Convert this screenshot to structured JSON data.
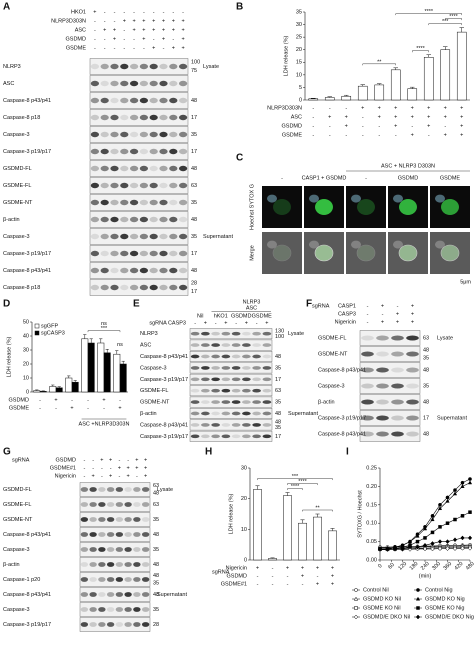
{
  "panel_labels": [
    "A",
    "B",
    "C",
    "D",
    "E",
    "F",
    "G",
    "H",
    "I"
  ],
  "blots": [
    {
      "conditions": [
        {
          "name": "HKO1",
          "signs": [
            "+",
            "-",
            "-",
            "-",
            "-",
            "-",
            "-",
            "-",
            "-",
            "-"
          ]
        },
        {
          "name": "NLRP3D303N",
          "signs": [
            "-",
            "-",
            "-",
            "+",
            "+",
            "+",
            "+",
            "+",
            "+",
            "+"
          ]
        },
        {
          "name": "ASC",
          "signs": [
            "-",
            "+",
            "+",
            "-",
            "+",
            "+",
            "+",
            "+",
            "+",
            "+"
          ]
        },
        {
          "name": "GSDMD",
          "signs": [
            "-",
            "-",
            "+",
            "-",
            "-",
            "+",
            "-",
            "+",
            "-",
            "+"
          ]
        },
        {
          "name": "GSDME",
          "signs": [
            "-",
            "-",
            "-",
            "-",
            "-",
            "-",
            "+",
            "-",
            "+",
            "+"
          ]
        }
      ],
      "bands": [
        {
          "name": "NLRP3",
          "markers": [
            "100",
            "75"
          ]
        },
        {
          "name": "ASC",
          "markers": []
        },
        {
          "name": "Caspase-8 p43/p41",
          "markers": [
            "48"
          ]
        },
        {
          "name": "Caspase-8 p18",
          "markers": [
            "17"
          ]
        },
        {
          "name": "Caspase-3",
          "markers": [
            "35"
          ]
        },
        {
          "name": "Caspase-3 p19/p17",
          "markers": [
            "17"
          ]
        },
        {
          "name": "GSDMD-FL",
          "markers": [
            "48"
          ]
        },
        {
          "name": "GSDME-FL",
          "markers": [
            "63"
          ]
        },
        {
          "name": "GSDME-NT",
          "markers": [
            "35"
          ]
        },
        {
          "name": "β-actin",
          "markers": [
            "48"
          ]
        },
        {
          "name": "Caspase-3",
          "markers": [
            "35"
          ]
        },
        {
          "name": "Caspase-3 p19/p17",
          "markers": [
            "17"
          ]
        },
        {
          "name": "Caspase-8 p43/p41",
          "markers": [
            "48"
          ]
        },
        {
          "name": "Caspase-8 p18",
          "markers": [
            "28",
            "17"
          ]
        }
      ],
      "groups": [
        "Lysate",
        "Supernatant"
      ]
    },
    {
      "header": {
        "top": "NLRP3",
        "sub": "ASC",
        "columns": [
          "Nil",
          "hKO1",
          "GSDMD",
          "GSDME"
        ]
      },
      "conditions": [
        {
          "name": "sgRNA CASP3",
          "signs": [
            "-",
            "+",
            "-",
            "+",
            "-",
            "+",
            "-",
            "+"
          ]
        }
      ],
      "bands": [
        {
          "name": "NLRP3",
          "markers": [
            "130",
            "100"
          ]
        },
        {
          "name": "ASC",
          "markers": []
        },
        {
          "name": "Caspase-8 p43/p41",
          "markers": [
            "48"
          ]
        },
        {
          "name": "Caspase-3",
          "markers": [
            "35"
          ]
        },
        {
          "name": "Caspase-3 p19/p17",
          "markers": [
            "17"
          ]
        },
        {
          "name": "GSDME-FL",
          "markers": [
            "63"
          ]
        },
        {
          "name": "GSDME-NT",
          "markers": [
            "35"
          ]
        },
        {
          "name": "β-actin",
          "markers": [
            "48"
          ]
        },
        {
          "name": "Caspase-8 p43/p41",
          "markers": [
            "48",
            "35"
          ]
        },
        {
          "name": "Caspase-3 p19/p17",
          "markers": [
            "17"
          ]
        }
      ],
      "groups": [
        "Lysate",
        "Supernatant"
      ]
    },
    {
      "conditions_title": "sgRNA",
      "conditions": [
        {
          "name": "CASP1",
          "signs": [
            "-",
            "+",
            "-",
            "+"
          ]
        },
        {
          "name": "CASP3",
          "signs": [
            "-",
            "-",
            "+",
            "+"
          ]
        },
        {
          "name": "Nigericin",
          "signs": [
            "-",
            "+",
            "+",
            "+"
          ]
        }
      ],
      "bands": [
        {
          "name": "GSDME-FL",
          "markers": [
            "63"
          ]
        },
        {
          "name": "GSDME-NT",
          "markers": [
            "48",
            "35"
          ]
        },
        {
          "name": "Caspase-8 p43/p41",
          "markers": [
            "48"
          ]
        },
        {
          "name": "Caspase-3",
          "markers": [
            "35"
          ]
        },
        {
          "name": "β-actin",
          "markers": [
            "48"
          ]
        },
        {
          "name": "Caspase-3 p19/p17",
          "markers": [
            "17"
          ]
        },
        {
          "name": "Caspase-8 p43/p41",
          "markers": [
            "48"
          ]
        }
      ],
      "groups": [
        "Lysate",
        "Supernatant"
      ]
    },
    {
      "conditions_title": "sgRNA",
      "conditions": [
        {
          "name": "GSDMD",
          "signs": [
            "-",
            "-",
            "+",
            "+",
            "-",
            "-",
            "+",
            "+"
          ]
        },
        {
          "name": "GSDME#1",
          "signs": [
            "-",
            "-",
            "-",
            "-",
            "+",
            "+",
            "+",
            "+"
          ]
        },
        {
          "name": "Nigericin",
          "signs": [
            "-",
            "+",
            "-",
            "+",
            "-",
            "+",
            "-",
            "+"
          ]
        }
      ],
      "bands": [
        {
          "name": "GSDMD-FL",
          "markers": [
            "63",
            "48"
          ]
        },
        {
          "name": "GSDME-FL",
          "markers": [
            "63"
          ]
        },
        {
          "name": "GSDME-NT",
          "markers": [
            "35"
          ]
        },
        {
          "name": "Caspase-8 p43/p41",
          "markers": [
            "48"
          ]
        },
        {
          "name": "Caspase-3",
          "markers": [
            "35"
          ]
        },
        {
          "name": "β-actin",
          "markers": [
            "48"
          ]
        },
        {
          "name": "Caspase-1 p20",
          "markers": [
            "48",
            "35"
          ]
        },
        {
          "name": "Caspase-8 p43/p41",
          "markers": [
            "48"
          ]
        },
        {
          "name": "Caspase-3",
          "markers": [
            "35"
          ]
        },
        {
          "name": "Caspase-3 p19/p17",
          "markers": [
            "28"
          ]
        }
      ],
      "groups": [
        "Lysate",
        "Supernatant"
      ]
    }
  ],
  "microscopy": {
    "group_header": "ASC + NLRP3 D303N",
    "col_headers": [
      "-",
      "CASP1 + GSDMD",
      "-",
      "GSDMD",
      "GSDME"
    ],
    "row_labels": [
      "Hoechst SYTOX G",
      "Merge"
    ],
    "scale": "5μm"
  },
  "chart_data": [
    {
      "type": "bar",
      "y_label": "LDH release (%)",
      "ylim": [
        0,
        35
      ],
      "yticks": [
        0,
        5,
        10,
        15,
        20,
        25,
        30,
        35
      ],
      "values": [
        0.5,
        1,
        1.5,
        5.5,
        6,
        12,
        4.5,
        17,
        20,
        27
      ],
      "errors": [
        0.2,
        0.3,
        0.4,
        0.6,
        0.5,
        0.8,
        0.6,
        1,
        1.2,
        1.8
      ],
      "color": "#ffffff",
      "conditions": [
        {
          "name": "NLRP3D303N",
          "signs": [
            "-",
            "-",
            "-",
            "+",
            "+",
            "+",
            "+",
            "+",
            "+",
            "+"
          ]
        },
        {
          "name": "ASC",
          "signs": [
            "-",
            "+",
            "+",
            "-",
            "+",
            "+",
            "+",
            "+",
            "+",
            "+"
          ]
        },
        {
          "name": "GSDMD",
          "signs": [
            "-",
            "-",
            "+",
            "-",
            "-",
            "+",
            "-",
            "+",
            "-",
            "+"
          ]
        },
        {
          "name": "GSDME",
          "signs": [
            "-",
            "-",
            "-",
            "-",
            "-",
            "-",
            "+",
            "-",
            "+",
            "+"
          ]
        }
      ],
      "annotations": [
        "**",
        "****",
        "***",
        "****",
        "****"
      ]
    },
    {
      "type": "grouped_bar",
      "y_label": "LDH release (%)",
      "ylim": [
        0,
        50
      ],
      "yticks": [
        0,
        10,
        20,
        30,
        40,
        50
      ],
      "series": [
        {
          "name": "sgGFP",
          "color": "#ffffff",
          "values": [
            1,
            4,
            10,
            38,
            35,
            27
          ],
          "errors": [
            0.5,
            1,
            1.5,
            3,
            3,
            2.5
          ]
        },
        {
          "name": "sgCASP3",
          "color": "#000000",
          "values": [
            0.5,
            3,
            7,
            35,
            28,
            20
          ],
          "errors": [
            0.3,
            0.8,
            1.2,
            3,
            2.5,
            2
          ]
        }
      ],
      "conditions": [
        {
          "name": "GSDMD",
          "signs": [
            "-",
            "+",
            "-",
            "-",
            "+",
            "-"
          ]
        },
        {
          "name": "GSDME",
          "signs": [
            "-",
            "-",
            "+",
            "-",
            "-",
            "+"
          ]
        }
      ],
      "group_label": "ASC +NLRP3D303N",
      "annotations": [
        "***",
        "ns",
        "ns"
      ]
    },
    {
      "type": "bar",
      "y_label": "LDH release (%)",
      "ylim": [
        0,
        30
      ],
      "yticks": [
        0,
        10,
        20,
        30
      ],
      "values": [
        23,
        0.5,
        21,
        12,
        14,
        9.5
      ],
      "errors": [
        1.2,
        0.2,
        1,
        1.1,
        1,
        0.8
      ],
      "color": "#ffffff",
      "conditions_title": "sgRNA",
      "conditions": [
        {
          "name": "Nigericin",
          "signs": [
            "+",
            "-",
            "+",
            "+",
            "+",
            "+"
          ]
        },
        {
          "name": "GSDMD",
          "signs": [
            "-",
            "-",
            "-",
            "+",
            "-",
            "+"
          ]
        },
        {
          "name": "GSDME#1",
          "signs": [
            "-",
            "-",
            "-",
            "-",
            "+",
            "+"
          ]
        }
      ],
      "annotations": [
        "****",
        "****",
        "***",
        "**"
      ]
    },
    {
      "type": "line",
      "y_label": "SYTOXG / Hoechst",
      "x_label": "(min)",
      "x": [
        0,
        40,
        80,
        120,
        160,
        200,
        240,
        280,
        320,
        360,
        400,
        440,
        480
      ],
      "xlim": [
        0,
        480
      ],
      "xticks": [
        0,
        60,
        120,
        180,
        240,
        300,
        360,
        420,
        480
      ],
      "ylim": [
        0,
        0.25
      ],
      "yticks": [
        {
          "value": 0,
          "label": "0.00"
        },
        {
          "value": 0.05,
          "label": "0.05"
        },
        {
          "value": 0.1,
          "label": "0.10"
        },
        {
          "value": 0.15,
          "label": "0.15"
        },
        {
          "value": 0.2,
          "label": "0.20"
        },
        {
          "value": 0.25,
          "label": "0.25"
        }
      ],
      "series": [
        {
          "name": "Control Nil",
          "color": "#000000",
          "marker": "circle",
          "filled": false,
          "values": [
            0.035,
            0.035,
            0.036,
            0.036,
            0.037,
            0.037,
            0.038,
            0.038,
            0.039,
            0.039,
            0.04,
            0.04,
            0.041
          ]
        },
        {
          "name": "GSDMD KO Nil",
          "color": "#000000",
          "marker": "triangle",
          "filled": false,
          "values": [
            0.033,
            0.033,
            0.034,
            0.034,
            0.035,
            0.035,
            0.036,
            0.036,
            0.036,
            0.037,
            0.037,
            0.038,
            0.038
          ]
        },
        {
          "name": "GSDME KO Nil",
          "color": "#000000",
          "marker": "square",
          "filled": false,
          "values": [
            0.03,
            0.03,
            0.031,
            0.031,
            0.032,
            0.032,
            0.032,
            0.033,
            0.033,
            0.034,
            0.034,
            0.034,
            0.035
          ]
        },
        {
          "name": "GSDMD/E DKO Nil",
          "color": "#000000",
          "marker": "diamond",
          "filled": false,
          "values": [
            0.028,
            0.028,
            0.029,
            0.029,
            0.029,
            0.03,
            0.03,
            0.03,
            0.031,
            0.031,
            0.031,
            0.032,
            0.032
          ]
        },
        {
          "name": "Control Nig",
          "color": "#000000",
          "marker": "circle",
          "filled": true,
          "values": [
            0.03,
            0.03,
            0.035,
            0.04,
            0.05,
            0.07,
            0.09,
            0.12,
            0.15,
            0.17,
            0.19,
            0.21,
            0.22
          ]
        },
        {
          "name": "GSDMD KO Nig",
          "color": "#000000",
          "marker": "triangle",
          "filled": true,
          "values": [
            0.03,
            0.03,
            0.035,
            0.04,
            0.05,
            0.065,
            0.085,
            0.11,
            0.14,
            0.16,
            0.18,
            0.2,
            0.21
          ]
        },
        {
          "name": "GSDME KO Nig",
          "color": "#000000",
          "marker": "square",
          "filled": true,
          "values": [
            0.03,
            0.03,
            0.03,
            0.035,
            0.04,
            0.05,
            0.06,
            0.075,
            0.09,
            0.1,
            0.11,
            0.12,
            0.13
          ]
        },
        {
          "name": "GSDMD/E DKO Nig",
          "color": "#000000",
          "marker": "diamond",
          "filled": true,
          "values": [
            0.03,
            0.03,
            0.03,
            0.03,
            0.035,
            0.035,
            0.04,
            0.045,
            0.05,
            0.05,
            0.055,
            0.06,
            0.06
          ]
        }
      ]
    }
  ]
}
